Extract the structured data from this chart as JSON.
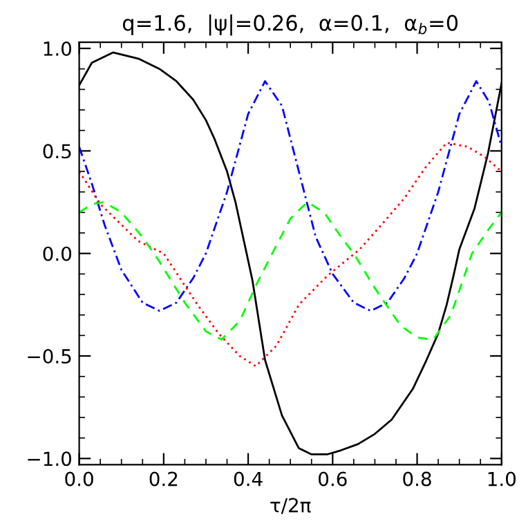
{
  "chart_data": {
    "type": "line",
    "title": "q=1.6,  |ψ|=0.26,  α=0.1,  α$_{b}$=0",
    "xlabel": "τ/2π",
    "xlim": [
      0,
      1
    ],
    "ylim": [
      -1.03,
      1.03
    ],
    "xticks": [
      {
        "value": 0,
        "label": "0.0"
      },
      {
        "value": 0.2,
        "label": "0.2"
      },
      {
        "value": 0.4,
        "label": "0.4"
      },
      {
        "value": 0.6,
        "label": "0.6"
      },
      {
        "value": 0.8,
        "label": "0.8"
      },
      {
        "value": 1,
        "label": "1.0"
      }
    ],
    "yticks": [
      {
        "value": -1,
        "label": "−1.0"
      },
      {
        "value": -0.5,
        "label": "−0.5"
      },
      {
        "value": 0,
        "label": "0.0"
      },
      {
        "value": 0.5,
        "label": "0.5"
      },
      {
        "value": 1,
        "label": "1.0"
      }
    ],
    "grid": false,
    "legend": false,
    "series": [
      {
        "color": "#000000",
        "line_style": "solid",
        "x": [
          0,
          0.03,
          0.08,
          0.14,
          0.19,
          0.23,
          0.27,
          0.3,
          0.32,
          0.35,
          0.37,
          0.39,
          0.41,
          0.44,
          0.48,
          0.52,
          0.55,
          0.587,
          0.62,
          0.66,
          0.7,
          0.74,
          0.79,
          0.82,
          0.85,
          0.87,
          0.886,
          0.9,
          0.936,
          0.968,
          1.0
        ],
        "values": [
          0.82,
          0.93,
          0.98,
          0.95,
          0.9,
          0.84,
          0.75,
          0.65,
          0.56,
          0.4,
          0.25,
          0.06,
          -0.13,
          -0.52,
          -0.79,
          -0.95,
          -0.98,
          -0.98,
          -0.96,
          -0.93,
          -0.88,
          -0.81,
          -0.66,
          -0.53,
          -0.39,
          -0.25,
          -0.11,
          0.02,
          0.22,
          0.49,
          0.83
        ]
      },
      {
        "color": "#0000ff",
        "line_style": "dashdot",
        "x": [
          0,
          0.03,
          0.06,
          0.1,
          0.15,
          0.19,
          0.23,
          0.27,
          0.3,
          0.35,
          0.4,
          0.44,
          0.48,
          0.52,
          0.56,
          0.6,
          0.65,
          0.69,
          0.73,
          0.77,
          0.8,
          0.85,
          0.9,
          0.94,
          0.97,
          1.0
        ],
        "values": [
          0.52,
          0.34,
          0.14,
          -0.08,
          -0.24,
          -0.28,
          -0.24,
          -0.12,
          0.0,
          0.3,
          0.68,
          0.84,
          0.72,
          0.4,
          0.08,
          -0.1,
          -0.24,
          -0.28,
          -0.24,
          -0.12,
          0.0,
          0.3,
          0.68,
          0.84,
          0.74,
          0.52
        ]
      },
      {
        "color": "#ff0000",
        "line_style": "dotted",
        "x": [
          0,
          0.05,
          0.1,
          0.14,
          0.2,
          0.28,
          0.33,
          0.38,
          0.418,
          0.467,
          0.52,
          0.587,
          0.664,
          0.72,
          0.77,
          0.82,
          0.87,
          0.92,
          0.96,
          1.0
        ],
        "values": [
          0.4,
          0.24,
          0.14,
          0.06,
          0.0,
          -0.25,
          -0.39,
          -0.5,
          -0.55,
          -0.45,
          -0.25,
          -0.11,
          0.02,
          0.15,
          0.27,
          0.42,
          0.54,
          0.52,
          0.47,
          0.4
        ]
      },
      {
        "color": "#00ff00",
        "line_style": "dashed",
        "x": [
          0,
          0.03,
          0.059,
          0.1,
          0.15,
          0.19,
          0.25,
          0.3,
          0.337,
          0.38,
          0.42,
          0.457,
          0.5,
          0.54,
          0.58,
          0.62,
          0.65,
          0.7,
          0.76,
          0.8,
          0.838,
          0.88,
          0.93,
          0.97,
          1.0
        ],
        "values": [
          0.2,
          0.24,
          0.25,
          0.2,
          0.08,
          -0.04,
          -0.24,
          -0.38,
          -0.42,
          -0.33,
          -0.15,
          0.0,
          0.17,
          0.25,
          0.2,
          0.08,
          0.0,
          -0.17,
          -0.35,
          -0.41,
          -0.42,
          -0.3,
          0.0,
          0.12,
          0.2
        ]
      }
    ]
  }
}
